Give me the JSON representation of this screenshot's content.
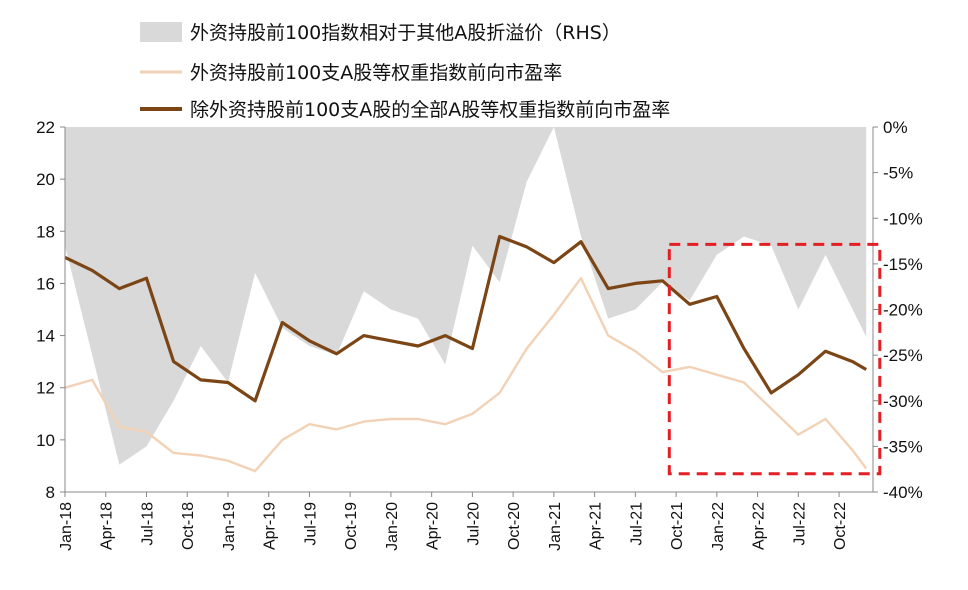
{
  "chart_data": {
    "type": "line",
    "legend": [
      "外资持股前100指数相对于其他A股折溢价（RHS）",
      "外资持股前100支A股等权重指数前向市盈率",
      "除外资持股前100支A股的全部A股等权重指数前向市盈率"
    ],
    "left_axis": {
      "range": [
        8,
        22
      ],
      "ticks": [
        "22",
        "20",
        "18",
        "16",
        "14",
        "12",
        "10",
        "8"
      ]
    },
    "right_axis": {
      "range": [
        -40,
        0
      ],
      "ticks": [
        "0%",
        "-5%",
        "-10%",
        "-15%",
        "-20%",
        "-25%",
        "-30%",
        "-35%",
        "-40%"
      ]
    },
    "x_tick_labels": [
      "Jan-18",
      "Apr-18",
      "Jul-18",
      "Oct-18",
      "Jan-19",
      "Apr-19",
      "Jul-19",
      "Oct-19",
      "Jan-20",
      "Apr-20",
      "Jul-20",
      "Oct-20",
      "Jan-21",
      "Apr-21",
      "Jul-21",
      "Oct-21",
      "Jan-22",
      "Apr-22",
      "Jul-22",
      "Oct-22"
    ],
    "x_months": [
      0,
      2,
      4,
      6,
      8,
      10,
      12,
      14,
      16,
      18,
      20,
      22,
      24,
      26,
      28,
      30,
      32,
      34,
      36,
      38,
      40,
      42,
      44,
      46,
      48,
      50,
      52,
      54,
      56,
      58,
      59
    ],
    "series": [
      {
        "name": "外资持股前100指数相对于其他A股折溢价（RHS）",
        "axis": "right",
        "kind": "area",
        "color": "#d9d9d9",
        "values": [
          -13.0,
          -25.0,
          -37.0,
          -35.0,
          -30.0,
          -24.0,
          -28.0,
          -16.0,
          -22.0,
          -24.0,
          -25.0,
          -18.0,
          -20.0,
          -21.0,
          -26.0,
          -13.0,
          -17.0,
          -6.0,
          0.0,
          -12.0,
          -21.0,
          -20.0,
          -17.0,
          -19.0,
          -14.0,
          -12.0,
          -13.0,
          -20.0,
          -14.0,
          -20.0,
          -23.0
        ]
      },
      {
        "name": "外资持股前100支A股等权重指数前向市盈率",
        "axis": "left",
        "kind": "line",
        "color": "#f2d2b6",
        "values": [
          12.0,
          12.3,
          10.5,
          10.3,
          9.5,
          9.4,
          9.2,
          8.8,
          10.0,
          10.6,
          10.4,
          10.7,
          10.8,
          10.8,
          10.6,
          11.0,
          11.8,
          13.5,
          14.8,
          16.2,
          14.0,
          13.4,
          12.6,
          12.8,
          12.5,
          12.2,
          11.2,
          10.2,
          10.8,
          9.6,
          8.9
        ]
      },
      {
        "name": "除外资持股前100支A股的全部A股等权重指数前向市盈率",
        "axis": "left",
        "kind": "line",
        "color": "#7b4515",
        "values": [
          17.0,
          16.5,
          15.8,
          16.2,
          13.0,
          12.3,
          12.2,
          11.5,
          14.5,
          13.8,
          13.3,
          14.0,
          13.8,
          13.6,
          14.0,
          13.5,
          17.8,
          17.4,
          16.8,
          17.6,
          15.8,
          16.0,
          16.1,
          15.2,
          15.5,
          13.5,
          11.8,
          12.5,
          13.4,
          13.0,
          12.7
        ]
      }
    ],
    "highlight_box": {
      "months": [
        44.5,
        60
      ],
      "left_values": [
        17.5,
        8.7
      ],
      "color": "#e31e24"
    }
  }
}
